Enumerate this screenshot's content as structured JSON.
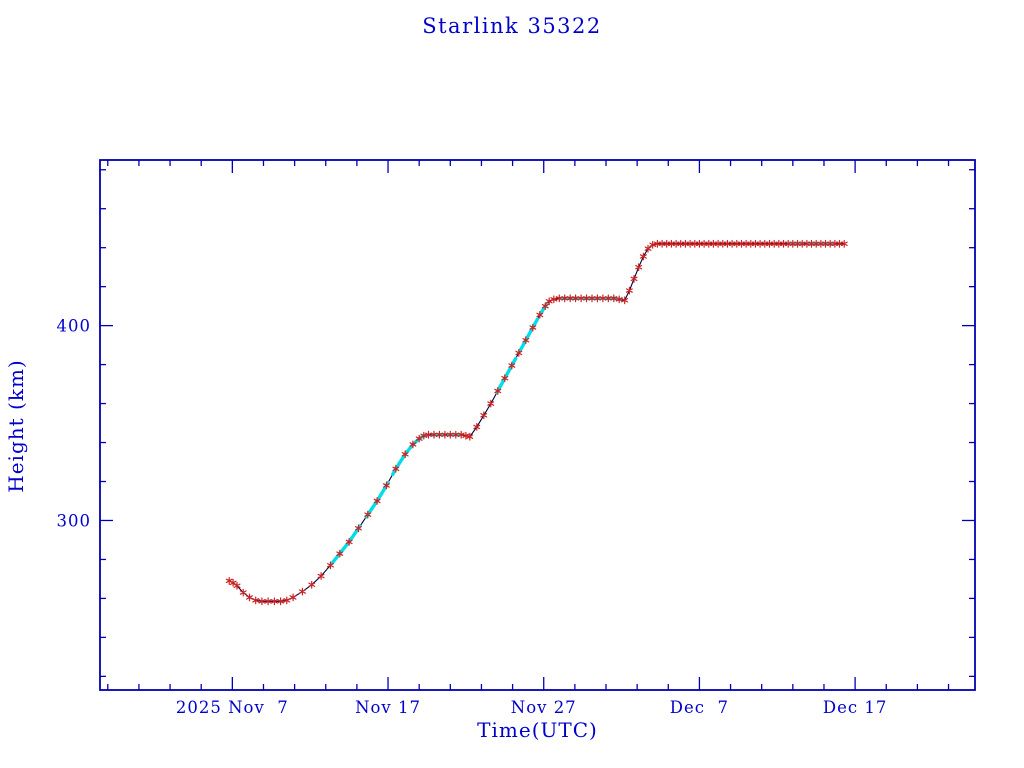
{
  "chart_data": {
    "type": "line",
    "title": "Starlink 35322",
    "xlabel": "Time(UTC)",
    "ylabel": "Height (km)",
    "x_unit": "days since 2025-10-31 (Nov 1 = 1)",
    "xlim": [
      -1.5,
      54.7
    ],
    "ylim": [
      213,
      485
    ],
    "x_major_ticks": [
      {
        "x": 7,
        "label": "2025 Nov  7"
      },
      {
        "x": 17,
        "label": "Nov 17"
      },
      {
        "x": 27,
        "label": "Nov 27"
      },
      {
        "x": 37,
        "label": "Dec  7"
      },
      {
        "x": 47,
        "label": "Dec 17"
      }
    ],
    "x_minor_start": -1,
    "x_minor_step": 2,
    "y_major_ticks": [
      {
        "y": 300,
        "label": "300"
      },
      {
        "y": 400,
        "label": "400"
      }
    ],
    "y_minor_start": 220,
    "y_minor_step": 20,
    "grid": false,
    "legend": "none",
    "series": [
      {
        "name": "height",
        "points": [
          [
            6.8,
            269
          ],
          [
            7.05,
            268
          ],
          [
            7.3,
            266.5
          ],
          [
            7.7,
            263
          ],
          [
            8.1,
            260.5
          ],
          [
            8.5,
            259
          ],
          [
            8.9,
            258.5
          ],
          [
            9.3,
            258.5
          ],
          [
            9.7,
            258.5
          ],
          [
            10.1,
            258.5
          ],
          [
            10.5,
            259
          ],
          [
            10.9,
            260.5
          ],
          [
            11.5,
            263.5
          ],
          [
            12.1,
            267
          ],
          [
            12.7,
            271.5
          ],
          [
            13.3,
            277
          ],
          [
            13.9,
            283
          ],
          [
            14.5,
            289
          ],
          [
            15.1,
            296
          ],
          [
            15.7,
            303
          ],
          [
            16.3,
            310
          ],
          [
            16.9,
            318
          ],
          [
            17.5,
            326.5
          ],
          [
            18.1,
            334
          ],
          [
            18.6,
            339
          ],
          [
            19.0,
            342
          ],
          [
            19.3,
            343.5
          ],
          [
            19.6,
            344
          ],
          [
            19.95,
            344
          ],
          [
            20.3,
            344
          ],
          [
            20.65,
            344
          ],
          [
            21.0,
            344
          ],
          [
            21.35,
            344
          ],
          [
            21.7,
            344
          ],
          [
            22.0,
            343.5
          ],
          [
            22.25,
            343
          ],
          [
            22.7,
            348
          ],
          [
            23.15,
            354
          ],
          [
            23.6,
            360
          ],
          [
            24.05,
            366.5
          ],
          [
            24.5,
            373
          ],
          [
            24.95,
            379.5
          ],
          [
            25.4,
            386
          ],
          [
            25.85,
            392.5
          ],
          [
            26.3,
            399
          ],
          [
            26.75,
            405.5
          ],
          [
            27.1,
            410
          ],
          [
            27.35,
            412.5
          ],
          [
            27.65,
            413.5
          ],
          [
            28.0,
            414
          ],
          [
            28.35,
            414
          ],
          [
            28.7,
            414
          ],
          [
            29.05,
            414
          ],
          [
            29.4,
            414
          ],
          [
            29.75,
            414
          ],
          [
            30.1,
            414
          ],
          [
            30.45,
            414
          ],
          [
            30.8,
            414
          ],
          [
            31.15,
            414
          ],
          [
            31.5,
            414
          ],
          [
            31.85,
            413.5
          ],
          [
            32.2,
            413
          ],
          [
            32.5,
            418
          ],
          [
            32.8,
            424
          ],
          [
            33.1,
            430
          ],
          [
            33.4,
            435.5
          ],
          [
            33.7,
            439.5
          ],
          [
            34.0,
            441.5
          ],
          [
            34.3,
            442
          ],
          [
            34.6,
            442
          ],
          [
            34.9,
            442
          ],
          [
            35.2,
            442
          ],
          [
            35.5,
            442
          ],
          [
            35.8,
            442
          ],
          [
            36.1,
            442
          ],
          [
            36.4,
            442
          ],
          [
            36.7,
            442
          ],
          [
            37.0,
            442
          ],
          [
            37.3,
            442
          ],
          [
            37.6,
            442
          ],
          [
            37.9,
            442
          ],
          [
            38.2,
            442
          ],
          [
            38.5,
            442
          ],
          [
            38.8,
            442
          ],
          [
            39.1,
            442
          ],
          [
            39.4,
            442
          ],
          [
            39.7,
            442
          ],
          [
            40.0,
            442
          ],
          [
            40.3,
            442
          ],
          [
            40.6,
            442
          ],
          [
            40.9,
            442
          ],
          [
            41.2,
            442
          ],
          [
            41.5,
            442
          ],
          [
            41.8,
            442
          ],
          [
            42.1,
            442
          ],
          [
            42.4,
            442
          ],
          [
            42.7,
            442
          ],
          [
            43.0,
            442
          ],
          [
            43.3,
            442
          ],
          [
            43.6,
            442
          ],
          [
            43.9,
            442
          ],
          [
            44.2,
            442
          ],
          [
            44.5,
            442
          ],
          [
            44.8,
            442
          ],
          [
            45.1,
            442
          ],
          [
            45.4,
            442
          ],
          [
            45.7,
            442
          ],
          [
            46.0,
            442
          ],
          [
            46.3,
            442
          ]
        ]
      }
    ],
    "cyan_segments": [
      [
        13.4,
        15.2
      ],
      [
        15.6,
        17.0
      ],
      [
        17.3,
        19.5
      ],
      [
        19.9,
        20.6
      ],
      [
        20.9,
        21.6
      ],
      [
        24.0,
        25.2
      ],
      [
        25.5,
        26.6
      ],
      [
        26.8,
        27.2
      ],
      [
        28.2,
        29.2
      ],
      [
        29.6,
        30.6
      ],
      [
        31.0,
        31.9
      ],
      [
        42.9,
        43.6
      ],
      [
        44.0,
        44.7
      ],
      [
        45.0,
        45.6
      ]
    ],
    "colors": {
      "line": "#000040",
      "marker": "#cc2222",
      "cyan": "#00dde8",
      "axis": "#0000b3",
      "text": "#0000cc"
    }
  }
}
